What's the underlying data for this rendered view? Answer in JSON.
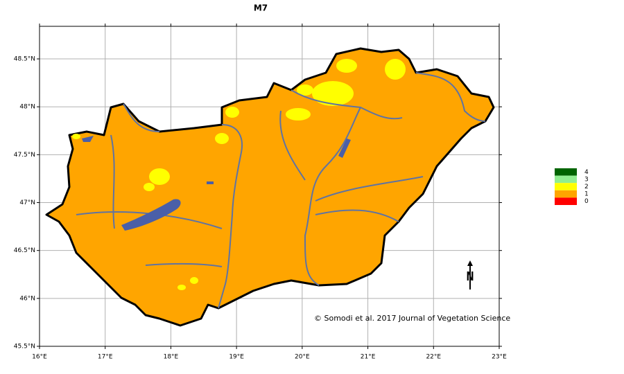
{
  "map": {
    "title": "M7",
    "xlim": [
      16,
      23
    ],
    "ylim": [
      45.5,
      48.84
    ],
    "xticks": [
      {
        "value": 16,
        "label": "16°E"
      },
      {
        "value": 17,
        "label": "17°E"
      },
      {
        "value": 18,
        "label": "18°E"
      },
      {
        "value": 19,
        "label": "19°E"
      },
      {
        "value": 20,
        "label": "20°E"
      },
      {
        "value": 21,
        "label": "21°E"
      },
      {
        "value": 22,
        "label": "22°E"
      },
      {
        "value": 23,
        "label": "23°E"
      }
    ],
    "yticks": [
      {
        "value": 45.5,
        "label": "45.5°N"
      },
      {
        "value": 46,
        "label": "46°N"
      },
      {
        "value": 46.5,
        "label": "46.5°N"
      },
      {
        "value": 47,
        "label": "47°N"
      },
      {
        "value": 47.5,
        "label": "47.5°N"
      },
      {
        "value": 48,
        "label": "48°N"
      },
      {
        "value": 48.5,
        "label": "48.5°N"
      }
    ],
    "grid": true,
    "legend": [
      {
        "label": "4",
        "color": "#006400"
      },
      {
        "label": "3",
        "color": "#90ee90"
      },
      {
        "label": "2",
        "color": "#ffff00"
      },
      {
        "label": "1",
        "color": "#ffa500"
      },
      {
        "label": "0",
        "color": "#ff0000"
      }
    ],
    "credit": "© Somodi et al. 2017 Journal of Vegetation Science",
    "north": "N"
  }
}
